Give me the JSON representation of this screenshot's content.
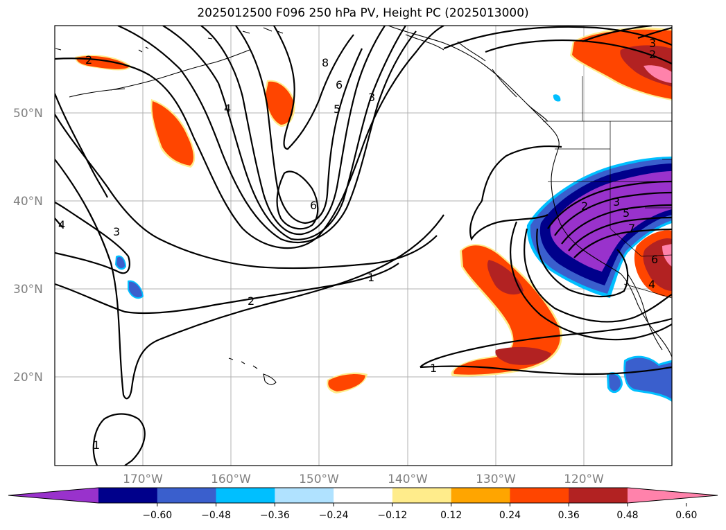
{
  "title": "2025012500 F096 250 hPa PV, Height PC (2025013000)",
  "map": {
    "projection": "PlateCarree",
    "lon_range": [
      -180,
      -110
    ],
    "lat_range": [
      10,
      60
    ],
    "lat_labels": [
      "50°N",
      "40°N",
      "30°N",
      "20°N"
    ],
    "lon_labels": [
      "170°W",
      "160°W",
      "150°W",
      "140°W",
      "130°W",
      "120°W"
    ],
    "grid": true
  },
  "colorbar": {
    "ticks": [
      "−0.60",
      "−0.48",
      "−0.36",
      "−0.24",
      "−0.12",
      "0.12",
      "0.24",
      "0.36",
      "0.48",
      "0.60"
    ],
    "colors": [
      "#9932cc",
      "#00008b",
      "#3a5fcd",
      "#00bfff",
      "#b0e2ff",
      "#ffffff",
      "#ffec8b",
      "#ffa500",
      "#ff4500",
      "#b22222",
      "#ff82ab"
    ],
    "extend": "both"
  },
  "contour_labels": [
    "2",
    "4",
    "8",
    "6",
    "5",
    "3",
    "6",
    "4",
    "3",
    "2",
    "1",
    "1",
    "1",
    "3",
    "2",
    "2",
    "3",
    "5",
    "7",
    "6",
    "4"
  ]
}
